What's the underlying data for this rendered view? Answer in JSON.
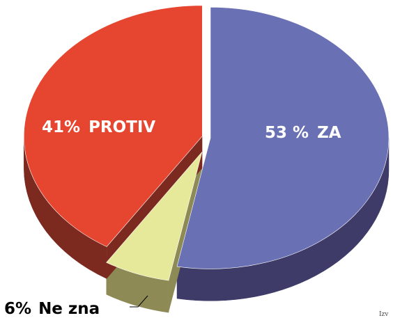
{
  "chart_data": {
    "type": "pie",
    "categories": [
      "ZA",
      "Ne zna",
      "PROTIV"
    ],
    "values": [
      53,
      6,
      41
    ],
    "value_labels": [
      "53 %",
      "6%",
      "41%"
    ],
    "colors": [
      "#6a70b4",
      "#e6e99a",
      "#e64530"
    ],
    "side_colors": [
      "#3f3b68",
      "#8d8a56",
      "#7c2a1f"
    ],
    "source": "Izv"
  }
}
